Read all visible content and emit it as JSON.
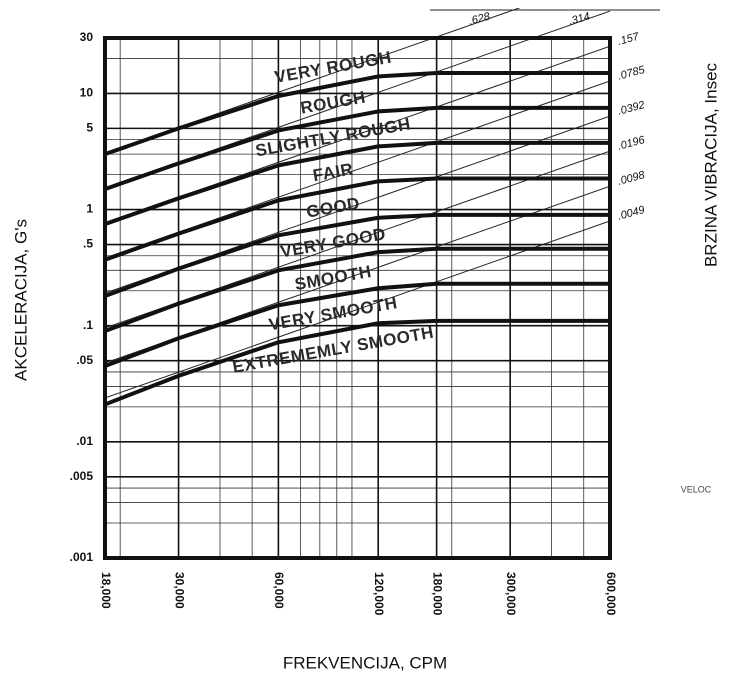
{
  "chart_data": {
    "type": "line",
    "x_label": "FREKVENCIJA, CPM",
    "y_label": "AKCELERACIJA, G's",
    "y2_label": "BRZINA VIBRACIJA, Insec",
    "side_note": "VELOC",
    "log_x": true,
    "log_y": true,
    "grid": true,
    "xlim": [
      18000,
      600000
    ],
    "ylim": [
      0.001,
      30
    ],
    "xticks": [
      {
        "value": 18000,
        "label": "18,000"
      },
      {
        "value": 30000,
        "label": "30,000"
      },
      {
        "value": 60000,
        "label": "60,000"
      },
      {
        "value": 120000,
        "label": "120,000"
      },
      {
        "value": 180000,
        "label": "180,000"
      },
      {
        "value": 300000,
        "label": "300,000"
      },
      {
        "value": 600000,
        "label": "600,000"
      }
    ],
    "yticks": [
      30,
      10,
      5,
      1,
      {
        "value": 0.5,
        "label": ".5"
      },
      {
        "value": 0.1,
        "label": ".1"
      },
      {
        "value": 0.05,
        "label": ".05"
      },
      {
        "value": 0.01,
        "label": ".01"
      },
      {
        "value": 0.005,
        "label": ".005"
      },
      {
        "value": 0.001,
        "label": ".001"
      }
    ],
    "x_minor_grid": [
      20000,
      40000,
      50000,
      70000,
      80000,
      90000,
      100000,
      200000,
      400000,
      500000
    ],
    "y_minor_grid": [
      0.002,
      0.003,
      0.004,
      0.02,
      0.03,
      0.04,
      0.2,
      0.3,
      0.4,
      2,
      3,
      4,
      20
    ],
    "x": [
      18000,
      30000,
      60000,
      120000,
      180000,
      300000,
      600000
    ],
    "series": [
      {
        "color": "#111111",
        "values": [
          3,
          5,
          9.5,
          14,
          15,
          15,
          15
        ]
      },
      {
        "color": "#111111",
        "values": [
          1.5,
          2.5,
          4.8,
          7,
          7.5,
          7.5,
          7.5
        ]
      },
      {
        "color": "#111111",
        "values": [
          0.75,
          1.25,
          2.4,
          3.5,
          3.75,
          3.75,
          3.75
        ]
      },
      {
        "color": "#111111",
        "values": [
          0.37,
          0.62,
          1.2,
          1.75,
          1.85,
          1.85,
          1.85
        ]
      },
      {
        "color": "#111111",
        "values": [
          0.18,
          0.31,
          0.6,
          0.85,
          0.9,
          0.9,
          0.9
        ]
      },
      {
        "color": "#111111",
        "values": [
          0.09,
          0.155,
          0.3,
          0.43,
          0.46,
          0.46,
          0.46
        ]
      },
      {
        "color": "#111111",
        "values": [
          0.045,
          0.078,
          0.15,
          0.21,
          0.23,
          0.23,
          0.23
        ]
      },
      {
        "color": "#111111",
        "values": [
          0.021,
          0.037,
          0.072,
          0.105,
          0.11,
          0.11,
          0.11
        ]
      }
    ],
    "regions": [
      "VERY ROUGH",
      "ROUGH",
      "SLIGHTLY ROUGH",
      "FAIR",
      "GOOD",
      "VERY GOOD",
      "SMOOTH",
      "VERY SMOOTH",
      "EXTREMEMLY SMOOTH"
    ],
    "velocity_lines": {
      "x": [
        18000,
        600000
      ],
      "lines": [
        {
          "velocity": {
            "value": 0.628,
            "label": ".628"
          },
          "values": [
            3.07,
            102.2
          ]
        },
        {
          "velocity": {
            "value": 0.314,
            "label": ".314"
          },
          "values": [
            1.53,
            51.1
          ]
        },
        {
          "velocity": {
            "value": 0.157,
            "label": ".157"
          },
          "values": [
            0.767,
            25.5
          ]
        },
        {
          "velocity": {
            "value": 0.0785,
            "label": ".0785"
          },
          "values": [
            0.383,
            12.8
          ]
        },
        {
          "velocity": {
            "value": 0.0392,
            "label": ".0392"
          },
          "values": [
            0.191,
            6.38
          ]
        },
        {
          "velocity": {
            "value": 0.0196,
            "label": ".0196"
          },
          "values": [
            0.0957,
            3.19
          ]
        },
        {
          "velocity": {
            "value": 0.0098,
            "label": ".0098"
          },
          "values": [
            0.0478,
            1.59
          ]
        },
        {
          "velocity": {
            "value": 0.0049,
            "label": ".0049"
          },
          "values": [
            0.0239,
            0.797
          ]
        }
      ]
    }
  }
}
